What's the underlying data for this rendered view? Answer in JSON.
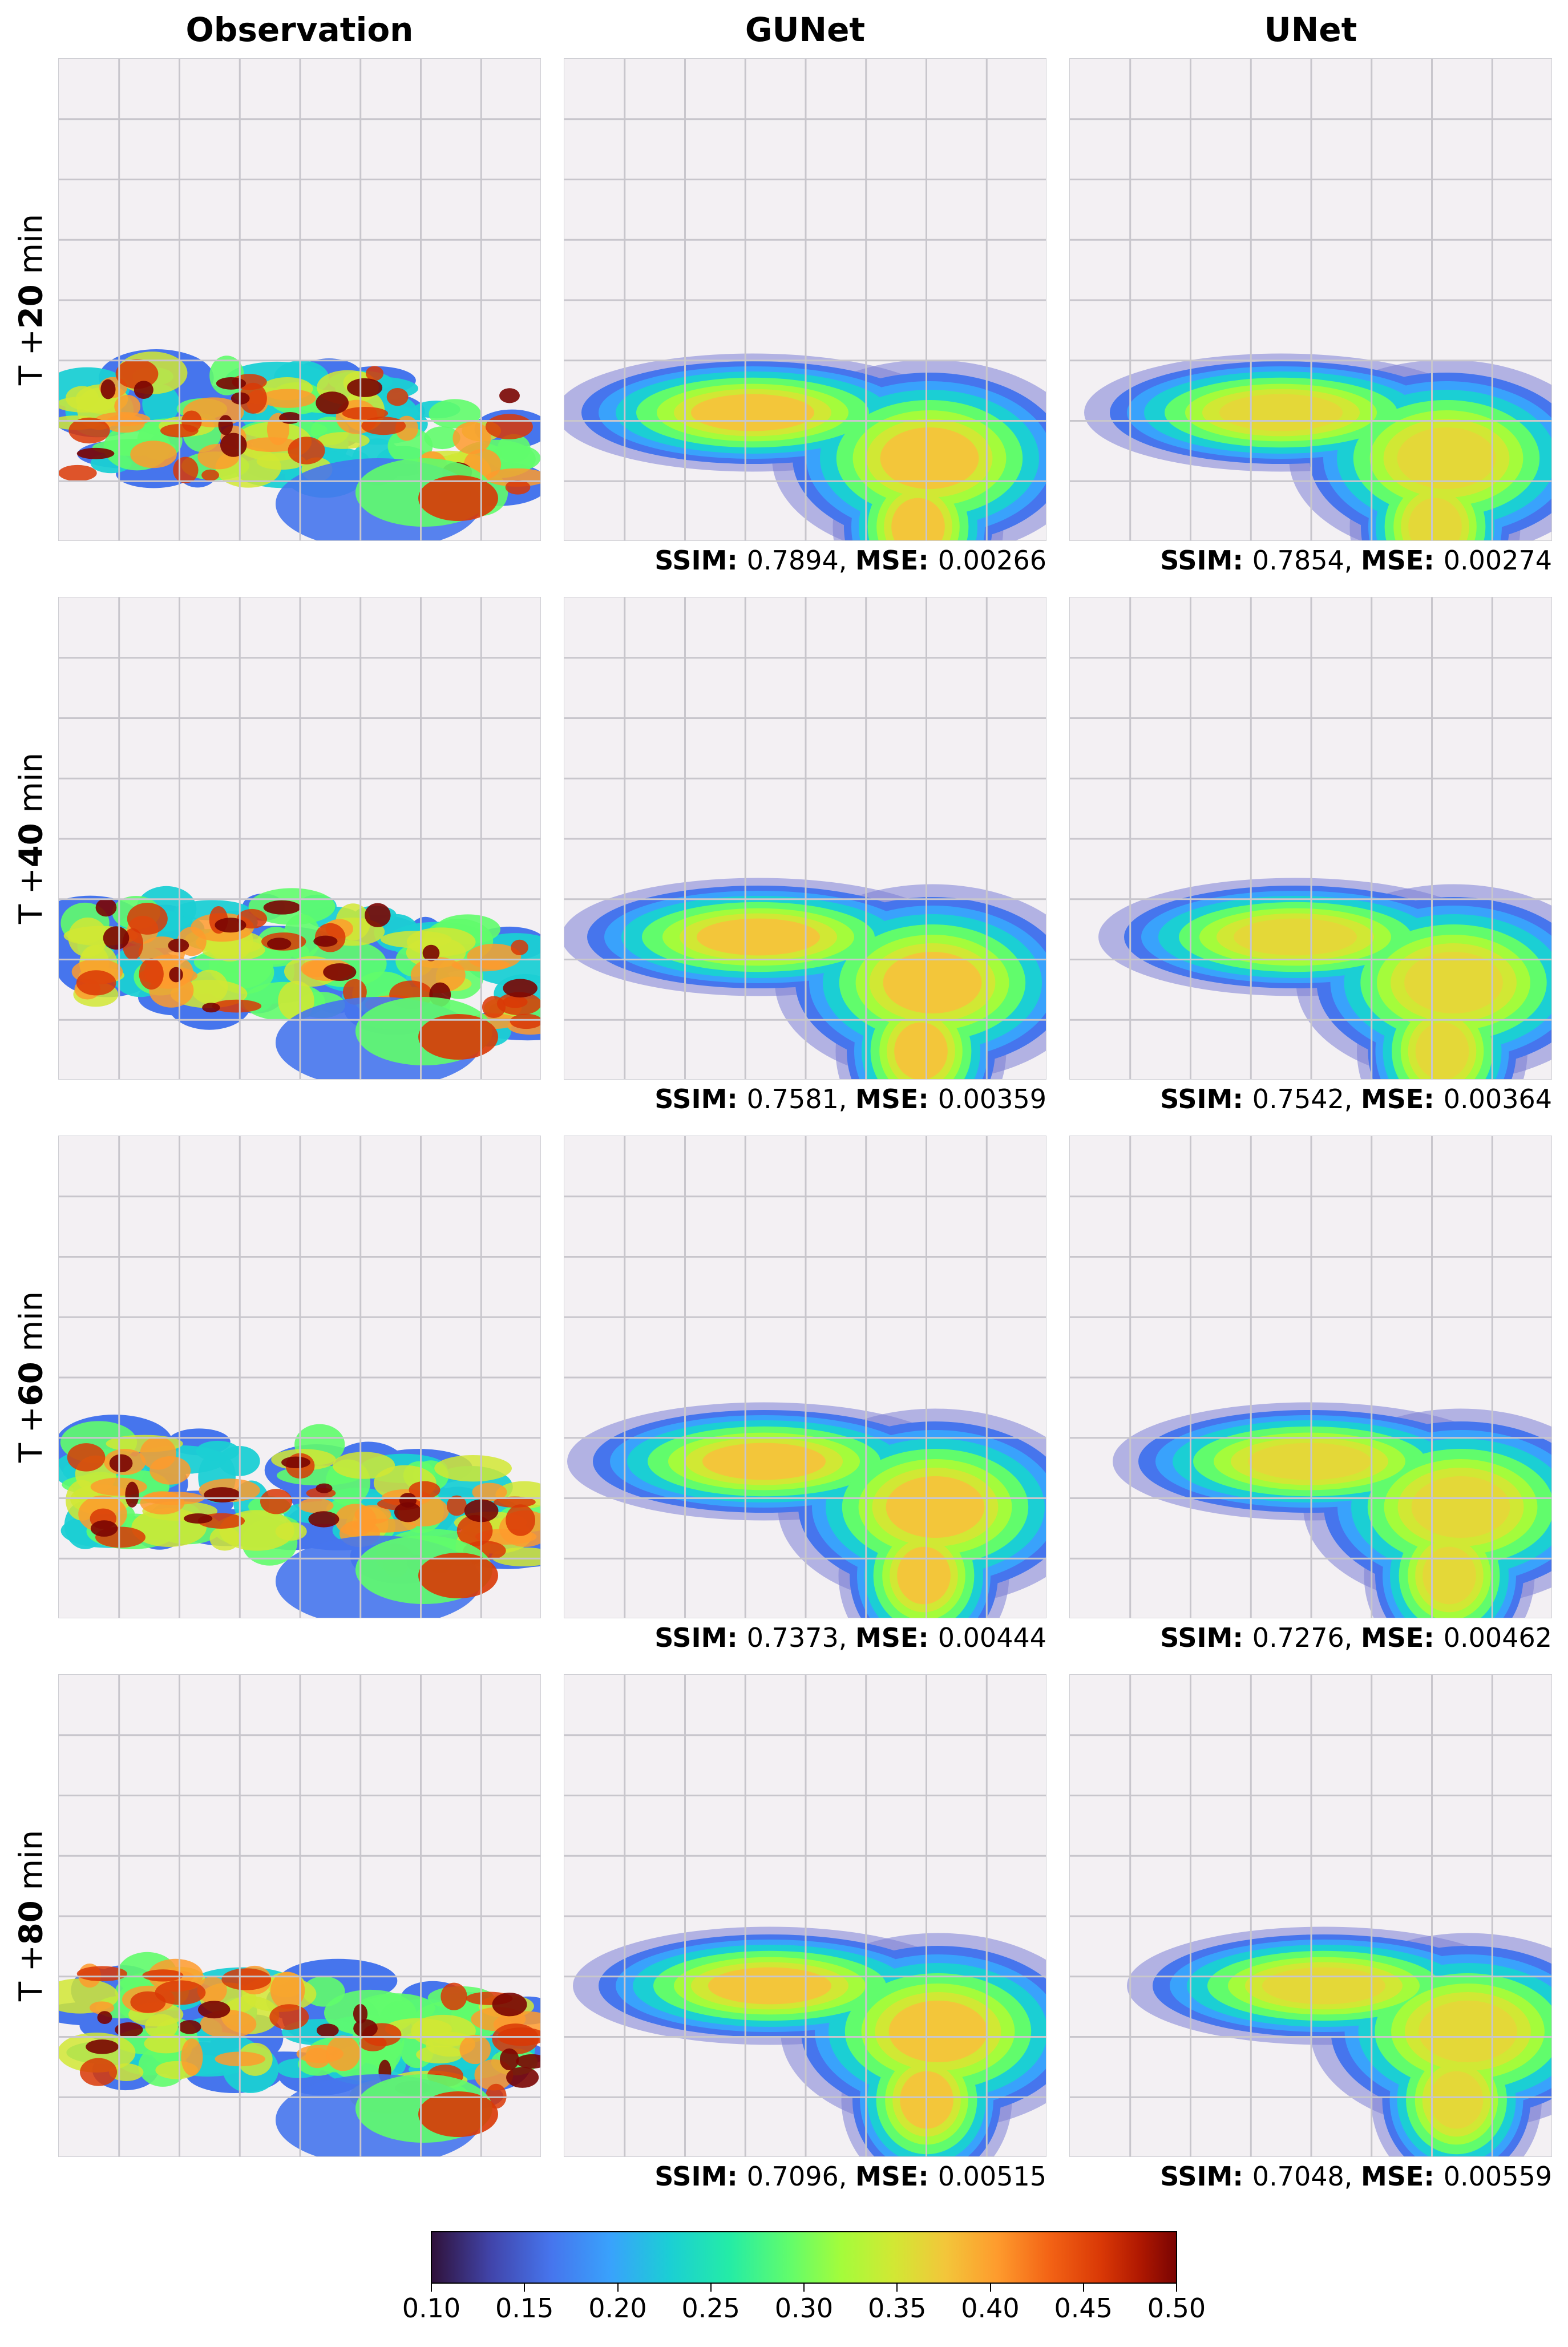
{
  "columns": [
    "Observation",
    "GUNet",
    "UNet"
  ],
  "rows": [
    {
      "prefix": "T +",
      "value": "20",
      "suffix": " min",
      "gunet": {
        "ssim": "0.7894",
        "mse": "0.00266"
      },
      "unet": {
        "ssim": "0.7854",
        "mse": "0.00274"
      }
    },
    {
      "prefix": "T +",
      "value": "40",
      "suffix": " min",
      "gunet": {
        "ssim": "0.7581",
        "mse": "0.00359"
      },
      "unet": {
        "ssim": "0.7542",
        "mse": "0.00364"
      }
    },
    {
      "prefix": "T +",
      "value": "60",
      "suffix": " min",
      "gunet": {
        "ssim": "0.7373",
        "mse": "0.00444"
      },
      "unet": {
        "ssim": "0.7276",
        "mse": "0.00462"
      }
    },
    {
      "prefix": "T +",
      "value": "80",
      "suffix": " min",
      "gunet": {
        "ssim": "0.7096",
        "mse": "0.00515"
      },
      "unet": {
        "ssim": "0.7048",
        "mse": "0.00559"
      }
    }
  ],
  "metric_labels": {
    "ssim": "SSIM",
    "mse": "MSE",
    "sep": ": ",
    "join": ", "
  },
  "colorbar": {
    "ticks": [
      "0.10",
      "0.15",
      "0.20",
      "0.25",
      "0.30",
      "0.35",
      "0.40",
      "0.45",
      "0.50"
    ],
    "colormap": "turbo",
    "colors": [
      "#30123b",
      "#4675ed",
      "#1bcfd4",
      "#61fc6c",
      "#d1e834",
      "#fe9b2d",
      "#d93806",
      "#7a0402"
    ]
  }
}
